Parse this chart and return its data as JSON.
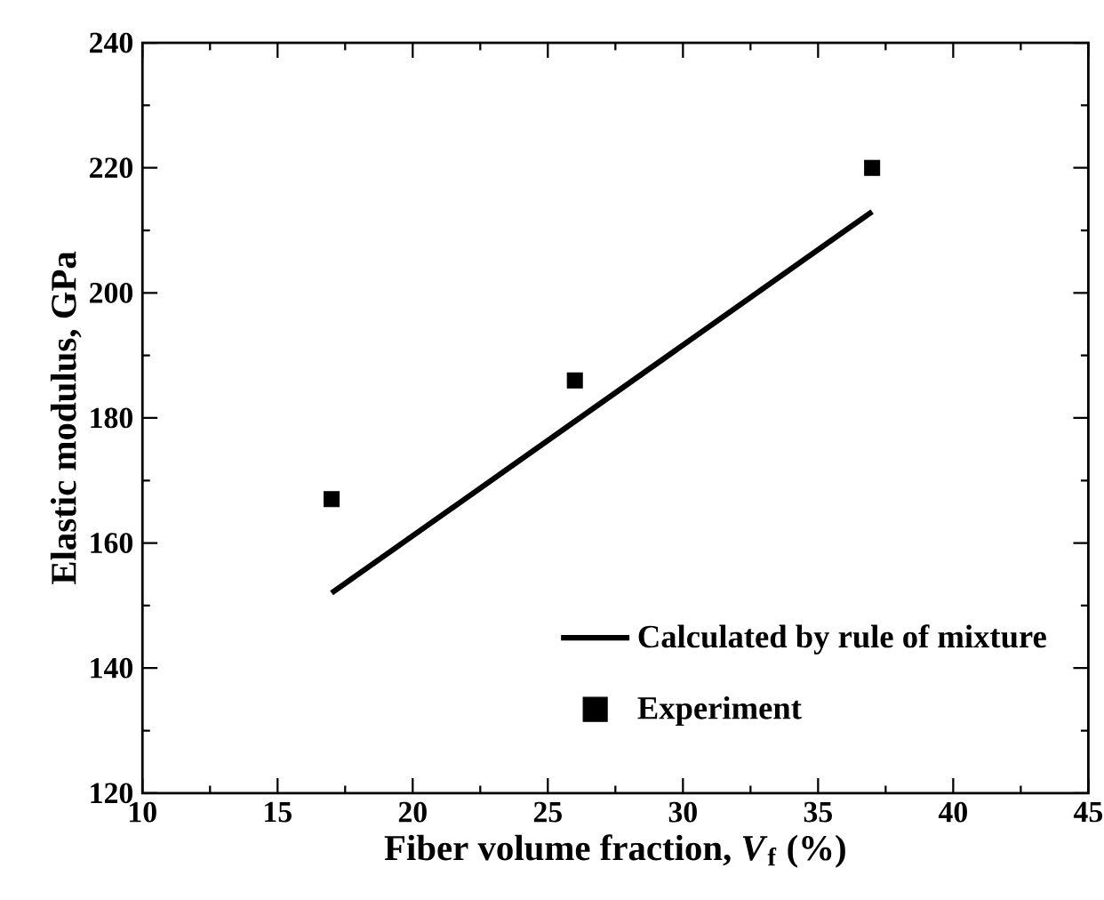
{
  "chart_data": {
    "type": "scatter",
    "xlabel": "Fiber volume fraction, *V*$_{f}$ (%)",
    "ylabel": "Elastic modulus, GPa",
    "xlim": [
      10,
      45
    ],
    "xticks": [
      10,
      15,
      20,
      25,
      30,
      35,
      40,
      45
    ],
    "ylim": [
      120,
      240
    ],
    "yticks": [
      120,
      140,
      160,
      180,
      200,
      220,
      240
    ],
    "legend": "bottom right",
    "series": [
      {
        "name": "Calculated by rule of mixture",
        "type": "line",
        "color": "#000000",
        "line_style": "solid",
        "marker": "none",
        "x": [
          17,
          37
        ],
        "values": [
          152,
          213
        ]
      },
      {
        "name": "Experiment",
        "color": "#000000",
        "marker": "square",
        "x": [
          17,
          26,
          37
        ],
        "values": [
          167,
          186,
          220
        ]
      }
    ]
  }
}
